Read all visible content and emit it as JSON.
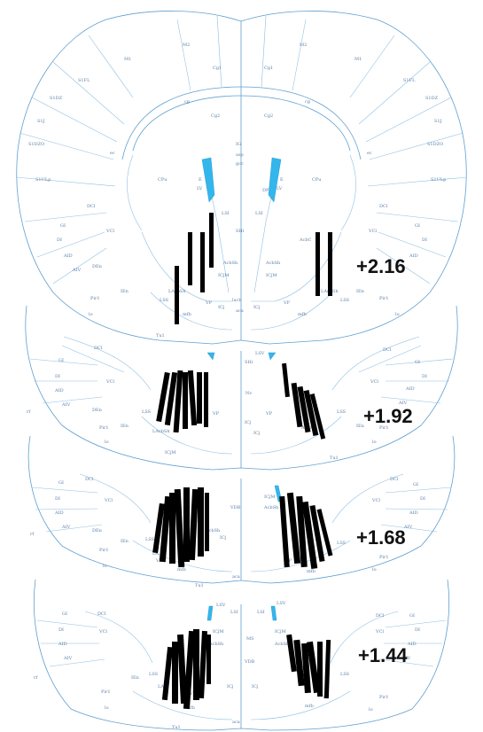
{
  "sections": [
    {
      "coordinate": "+2.16",
      "labels": [
        "M1",
        "M2",
        "Cg1",
        "Cg1",
        "M2",
        "M1",
        "S1FL",
        "S1FL",
        "S1DZ",
        "S1DZ",
        "S1J",
        "S1J",
        "S1DZO",
        "S1DZO",
        "S1ULp",
        "S1ULp",
        "Cg2",
        "Cg2",
        "IG",
        "CPu",
        "CPu",
        "LV",
        "LV",
        "LSI",
        "LSI",
        "SHi",
        "AcbC",
        "AcbSh",
        "AcbSh",
        "ICjM",
        "ICjM",
        "ICj",
        "ICj",
        "VP",
        "VP",
        "DCl",
        "DCl",
        "VCl",
        "VCl",
        "GI",
        "GI",
        "DI",
        "DI",
        "AID",
        "AID",
        "AIV",
        "DEn",
        "LSS",
        "LSS",
        "Pir1",
        "Pir1",
        "lo",
        "lo",
        "Tu1",
        "mfb",
        "mfb",
        "lacb",
        "aca",
        "ec",
        "ec",
        "cg",
        "cg",
        "gcc",
        "asp",
        "E",
        "E",
        "DP",
        "IEn",
        "IEn",
        "LAcbSh",
        "LAcbSh"
      ]
    },
    {
      "coordinate": "+1.92",
      "labels": [
        "GI",
        "GI",
        "DI",
        "DI",
        "AID",
        "AID",
        "AIV",
        "AIV",
        "DCl",
        "DCl",
        "VCl",
        "VCl",
        "DEn",
        "IEn",
        "IEn",
        "LSS",
        "LSS",
        "LAcbSh",
        "AcbSh",
        "VP",
        "VP",
        "Nv",
        "ICj",
        "ICj",
        "Pir1",
        "Pir1",
        "lo",
        "lo",
        "Tu1",
        "ICjM",
        "SHi",
        "LSV",
        "rf"
      ]
    },
    {
      "coordinate": "+1.68",
      "labels": [
        "GI",
        "GI",
        "DI",
        "DI",
        "AID",
        "AID",
        "AIV",
        "AIV",
        "DCl",
        "DCl",
        "VCl",
        "VCl",
        "DEn",
        "IEn",
        "LSS",
        "LSS",
        "LA",
        "AcbSh",
        "AcbSh",
        "VDB",
        "ICjM",
        "ICj",
        "VP",
        "VP",
        "mfb",
        "mfb",
        "Pir1",
        "Pir1",
        "lo",
        "lo",
        "Tu1",
        "aca",
        "rf"
      ]
    },
    {
      "coordinate": "+1.44",
      "labels": [
        "GI",
        "GI",
        "DI",
        "DI",
        "AID",
        "AID",
        "AIV",
        "AIV",
        "DCl",
        "DCl",
        "VCl",
        "VCl",
        "IEn",
        "LSS",
        "LSS",
        "LA",
        "ICjM",
        "ICjM",
        "AcbSh",
        "AcbSh",
        "VDB",
        "MS",
        "LSI",
        "LSI",
        "LSV",
        "LSV",
        "ICj",
        "ICj",
        "VP",
        "VP",
        "mfb",
        "mfb",
        "Pir1",
        "Pir1",
        "lo",
        "lo",
        "Tu1",
        "aca",
        "rf"
      ]
    }
  ],
  "colors": {
    "outline": "#5f9fd0",
    "ventricle": "#33b6ec",
    "track": "#000000"
  }
}
